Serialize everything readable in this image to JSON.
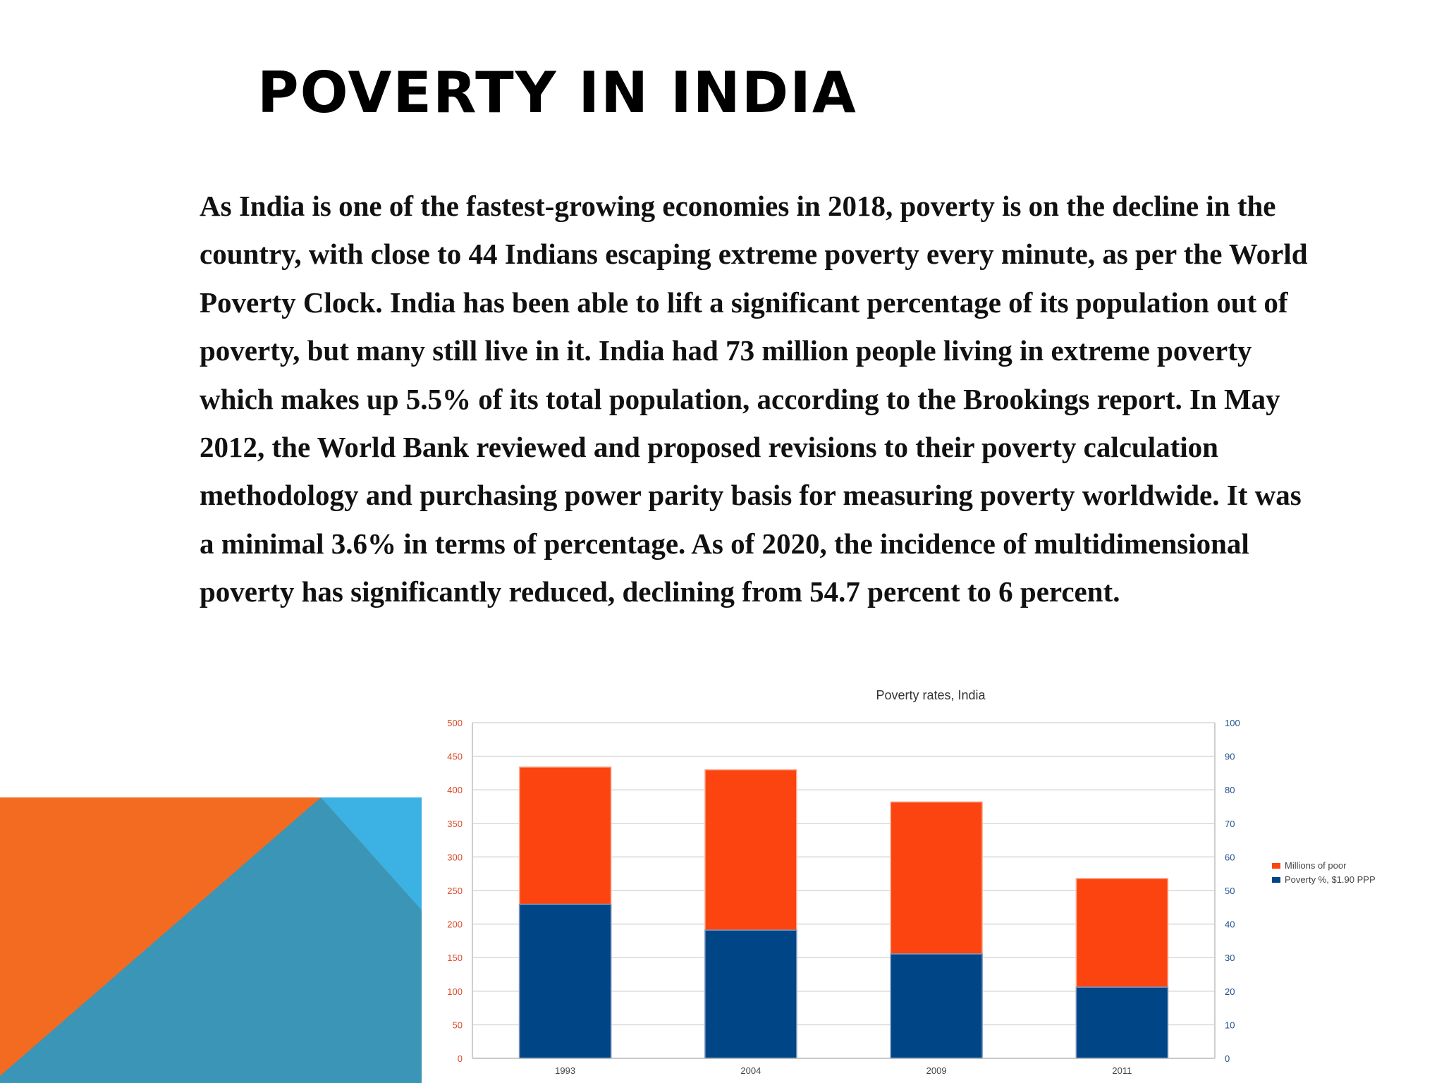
{
  "slide": {
    "title": "POVERTY IN INDIA",
    "body": "As India is one of the fastest-growing economies in 2018, poverty is on the decline in the country, with close to 44 Indians escaping extreme poverty every minute, as per the World Poverty Clock. India has been able to lift a significant percentage of its population out of poverty, but many still live in it. India had 73 million people living in extreme poverty which makes up 5.5% of its total population, according to the Brookings report. In May 2012, the World Bank reviewed and proposed revisions to their poverty calculation methodology and purchasing power parity basis for measuring poverty worldwide. It was a minimal 3.6% in terms of percentage. As of 2020, the incidence of multidimensional poverty has significantly reduced, declining from 54.7 percent to 6 percent."
  },
  "colors": {
    "deco_orange": "#f26b21",
    "deco_teal": "#3b95b7",
    "deco_blue": "#3bb2e3",
    "millions_series": "#fc4410",
    "percent_series": "#004586"
  },
  "chart_data": {
    "type": "bar",
    "stacked": true,
    "title": "Poverty rates, India",
    "categories": [
      "1993",
      "2004",
      "2009",
      "2011"
    ],
    "series": [
      {
        "name": "Poverty %, $1.90 PPP",
        "axis": "right",
        "values": [
          45.9,
          38.2,
          31.1,
          21.2
        ],
        "color": "#004586"
      },
      {
        "name": "Millions of poor",
        "axis": "left",
        "values": [
          434,
          430,
          382,
          268
        ],
        "color": "#fc4410"
      }
    ],
    "y_left": {
      "min": 0,
      "max": 500,
      "ticks": [
        0,
        50,
        100,
        150,
        200,
        250,
        300,
        350,
        400,
        450,
        500
      ]
    },
    "y_right": {
      "min": 0,
      "max": 100,
      "ticks": [
        0,
        10,
        20,
        30,
        40,
        50,
        60,
        70,
        80,
        90,
        100
      ]
    },
    "xlabel": "",
    "ylabel": "",
    "grid": true,
    "legend": "right"
  }
}
